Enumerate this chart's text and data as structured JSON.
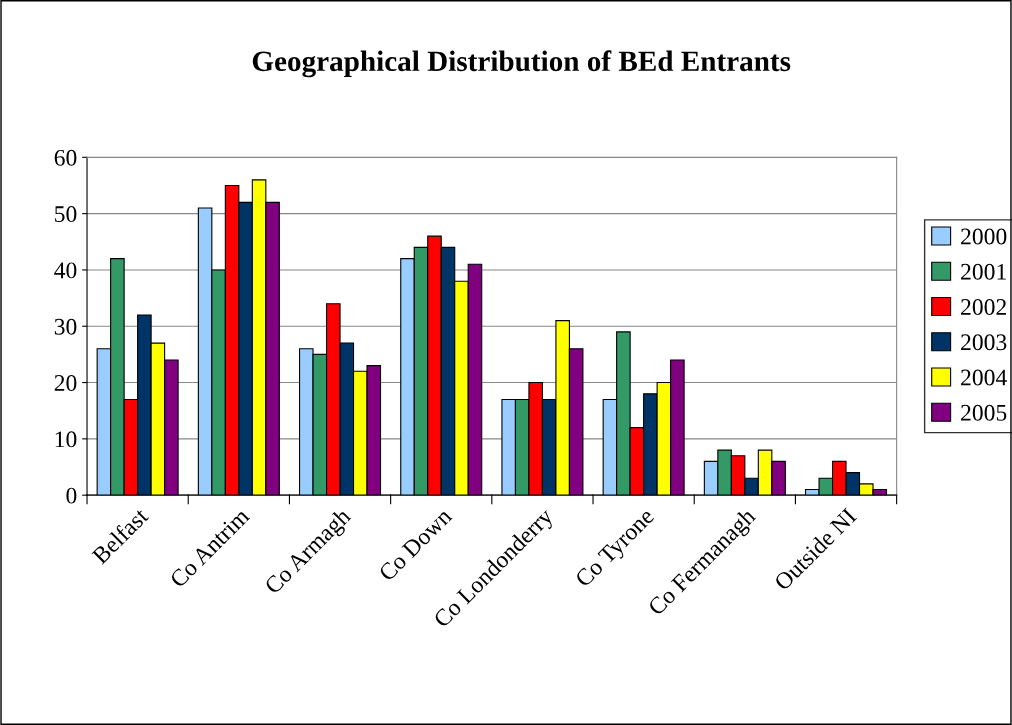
{
  "chart_data": {
    "type": "bar",
    "title": "Geographical Distribution of BEd Entrants",
    "categories": [
      "Belfast",
      "Co Antrim",
      "Co Armagh",
      "Co Down",
      "Co Londonderry",
      "Co Tyrone",
      "Co Fermanagh",
      "Outside NI"
    ],
    "series": [
      {
        "name": "2000",
        "color": "#99ccff",
        "values": [
          26,
          51,
          26,
          42,
          17,
          17,
          6,
          1
        ]
      },
      {
        "name": "2001",
        "color": "#339966",
        "values": [
          42,
          40,
          25,
          44,
          17,
          29,
          8,
          3
        ]
      },
      {
        "name": "2002",
        "color": "#ff0000",
        "values": [
          17,
          55,
          34,
          46,
          20,
          12,
          7,
          6
        ]
      },
      {
        "name": "2003",
        "color": "#003366",
        "values": [
          32,
          52,
          27,
          44,
          17,
          18,
          3,
          4
        ]
      },
      {
        "name": "2004",
        "color": "#ffff00",
        "values": [
          27,
          56,
          22,
          38,
          31,
          20,
          8,
          2
        ]
      },
      {
        "name": "2005",
        "color": "#800080",
        "values": [
          24,
          52,
          23,
          41,
          26,
          24,
          6,
          1
        ]
      }
    ],
    "ylim": [
      0,
      60
    ],
    "yticks": [
      0,
      10,
      20,
      30,
      40,
      50,
      60
    ],
    "grid": "y",
    "legend": "right"
  }
}
